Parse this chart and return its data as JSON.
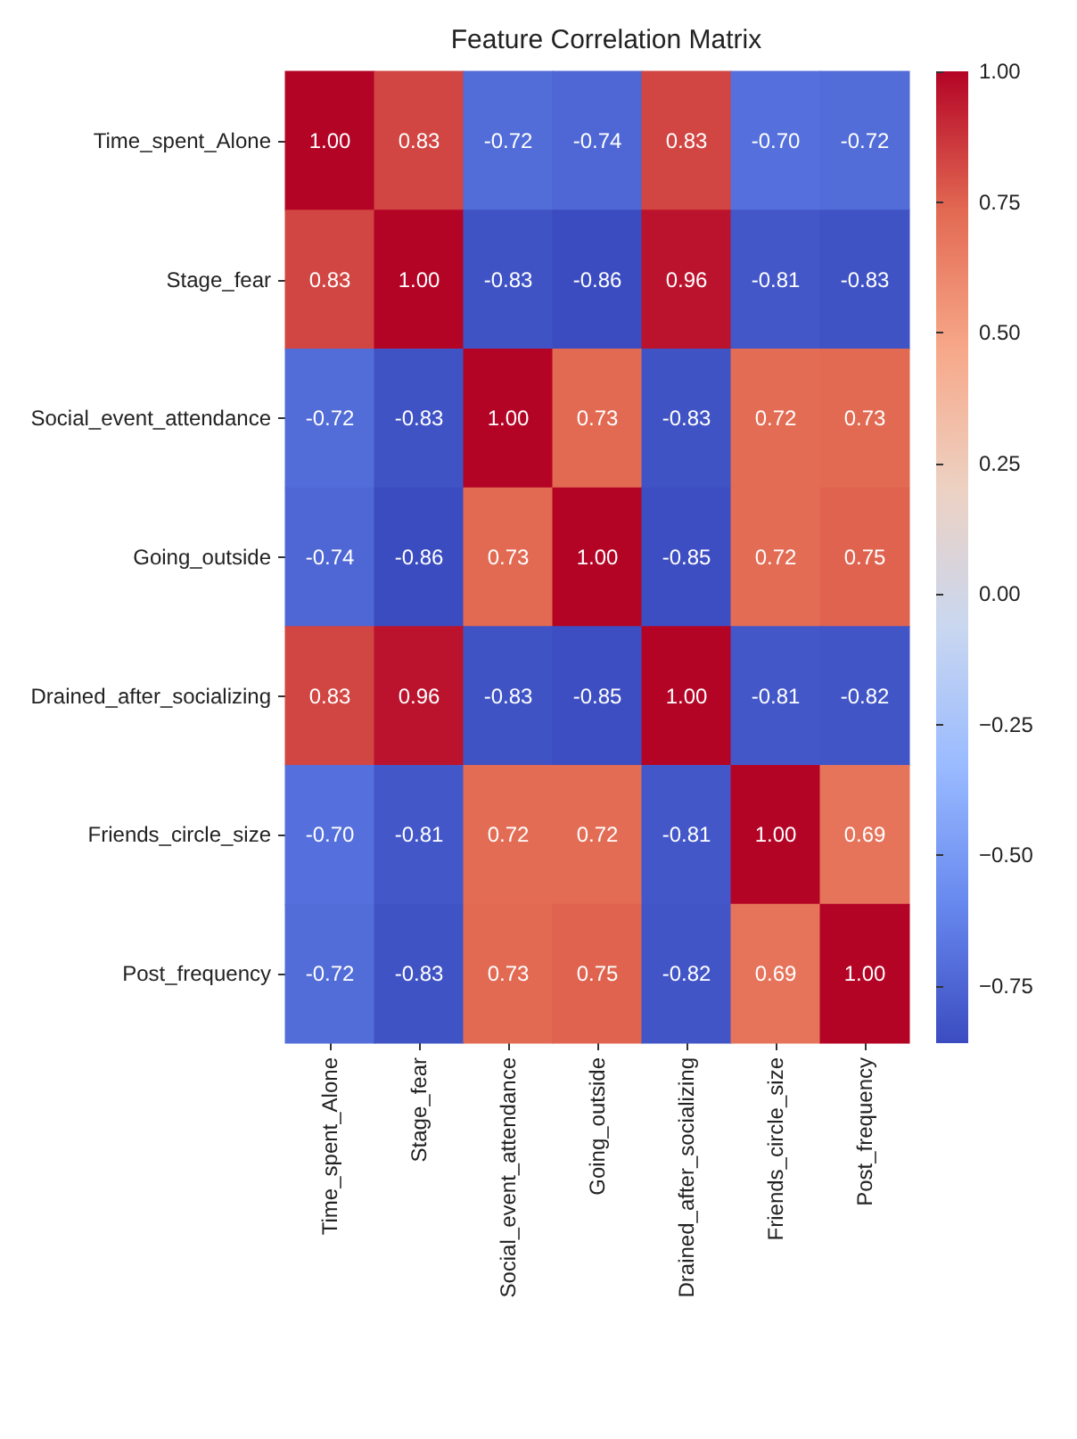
{
  "chart_data": {
    "type": "heatmap",
    "title": "Feature Correlation Matrix",
    "categories": [
      "Time_spent_Alone",
      "Stage_fear",
      "Social_event_attendance",
      "Going_outside",
      "Drained_after_socializing",
      "Friends_circle_size",
      "Post_frequency"
    ],
    "y_categories": [
      "Time_spent_Alone",
      "Stage_fear",
      "Social_event_attendance",
      "Going_outside",
      "Drained_after_socializing",
      "Friends_circle_size",
      "Post_frequency"
    ],
    "cells": [
      [
        1.0,
        0.83,
        -0.72,
        -0.74,
        0.83,
        -0.7,
        -0.72
      ],
      [
        0.83,
        1.0,
        -0.83,
        -0.86,
        0.96,
        -0.81,
        -0.83
      ],
      [
        -0.72,
        -0.83,
        1.0,
        0.73,
        -0.83,
        0.72,
        0.73
      ],
      [
        -0.74,
        -0.86,
        0.73,
        1.0,
        -0.85,
        0.72,
        0.75
      ],
      [
        0.83,
        0.96,
        -0.83,
        -0.85,
        1.0,
        -0.81,
        -0.82
      ],
      [
        -0.7,
        -0.81,
        0.72,
        0.72,
        -0.81,
        1.0,
        0.69
      ],
      [
        -0.72,
        -0.83,
        0.73,
        0.75,
        -0.82,
        0.69,
        1.0
      ]
    ],
    "clim": [
      -0.86,
      1
    ],
    "cticks": [
      {
        "value": 1,
        "label": "1.00"
      },
      {
        "value": 0.75,
        "label": "0.75"
      },
      {
        "value": 0.5,
        "label": "0.50"
      },
      {
        "value": 0.25,
        "label": "0.25"
      },
      {
        "value": 0,
        "label": "0.00"
      },
      {
        "value": -0.25,
        "label": "−0.25"
      },
      {
        "value": -0.5,
        "label": "−0.50"
      },
      {
        "value": -0.75,
        "label": "−0.75"
      }
    ],
    "cell_labels": [
      [
        "1.00",
        "0.83",
        "-0.72",
        "-0.74",
        "0.83",
        "-0.70",
        "-0.72"
      ],
      [
        "0.83",
        "1.00",
        "-0.83",
        "-0.86",
        "0.96",
        "-0.81",
        "-0.83"
      ],
      [
        "-0.72",
        "-0.83",
        "1.00",
        "0.73",
        "-0.83",
        "0.72",
        "0.73"
      ],
      [
        "-0.74",
        "-0.86",
        "0.73",
        "1.00",
        "-0.85",
        "0.72",
        "0.75"
      ],
      [
        "0.83",
        "0.96",
        "-0.83",
        "-0.85",
        "1.00",
        "-0.81",
        "-0.82"
      ],
      [
        "-0.70",
        "-0.81",
        "0.72",
        "0.72",
        "-0.81",
        "1.00",
        "0.69"
      ],
      [
        "-0.72",
        "-0.83",
        "0.73",
        "0.75",
        "-0.82",
        "0.69",
        "1.00"
      ]
    ]
  }
}
